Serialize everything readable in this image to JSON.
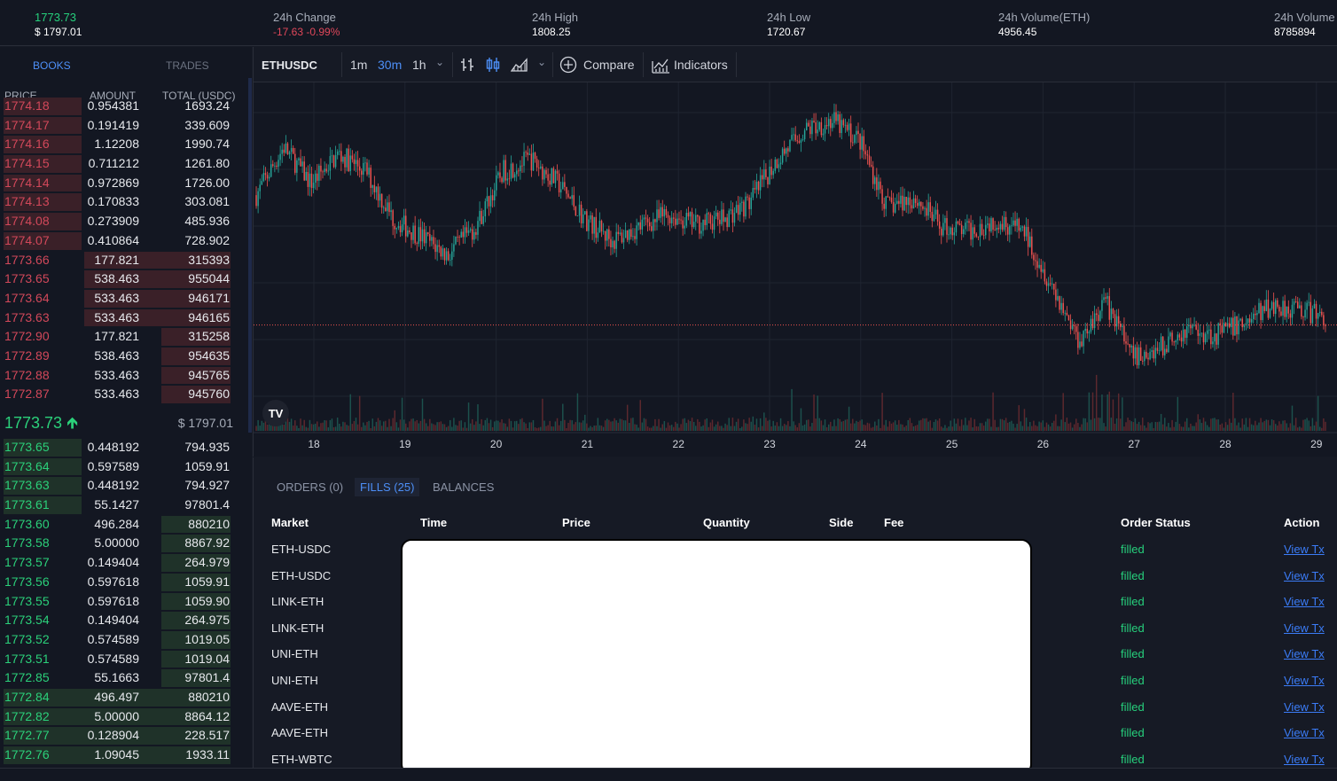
{
  "ticker": {
    "last_price": "1773.73",
    "last_usd": "$ 1797.01",
    "change_label": "24h Change",
    "change_value": "-17.63",
    "change_pct": "-0.99%",
    "high_label": "24h High",
    "high_value": "1808.25",
    "low_label": "24h Low",
    "low_value": "1720.67",
    "vol_eth_label": "24h Volume(ETH)",
    "vol_eth_value": "4956.45",
    "vol_label": "24h Volume",
    "vol_value": "8785894"
  },
  "book": {
    "tabs": [
      "BOOKS",
      "TRADES"
    ],
    "headers": [
      "PRICE",
      "AMOUNT",
      "TOTAL (USDC)"
    ],
    "asks": [
      {
        "price": "1774.18",
        "amount": "0.954381",
        "total": "1693.24",
        "depth": 0.05
      },
      {
        "price": "1774.17",
        "amount": "0.191419",
        "total": "339.609",
        "depth": 0.05
      },
      {
        "price": "1774.16",
        "amount": "1.12208",
        "total": "1990.74",
        "depth": 0.05
      },
      {
        "price": "1774.15",
        "amount": "0.711212",
        "total": "1261.80",
        "depth": 0.05
      },
      {
        "price": "1774.14",
        "amount": "0.972869",
        "total": "1726.00",
        "depth": 0.05
      },
      {
        "price": "1774.13",
        "amount": "0.170833",
        "total": "303.081",
        "depth": 0.05
      },
      {
        "price": "1774.08",
        "amount": "0.273909",
        "total": "485.936",
        "depth": 0.05
      },
      {
        "price": "1774.07",
        "amount": "0.410864",
        "total": "728.902",
        "depth": 0.05
      },
      {
        "price": "1773.66",
        "amount": "177.821",
        "total": "315393",
        "depth": 0.33
      },
      {
        "price": "1773.65",
        "amount": "538.463",
        "total": "955044",
        "depth": 0.33
      },
      {
        "price": "1773.64",
        "amount": "533.463",
        "total": "946171",
        "depth": 0.33
      },
      {
        "price": "1773.63",
        "amount": "533.463",
        "total": "946165",
        "depth": 0.33
      },
      {
        "price": "1772.90",
        "amount": "177.821",
        "total": "315258",
        "depth": 0.64
      },
      {
        "price": "1772.89",
        "amount": "538.463",
        "total": "954635",
        "depth": 0.64
      },
      {
        "price": "1772.88",
        "amount": "533.463",
        "total": "945765",
        "depth": 0.64
      },
      {
        "price": "1772.87",
        "amount": "533.463",
        "total": "945760",
        "depth": 0.64
      }
    ],
    "mid_price": "1773.73",
    "mid_usd": "$ 1797.01",
    "bids": [
      {
        "price": "1773.65",
        "amount": "0.448192",
        "total": "794.935",
        "depth": 0.05
      },
      {
        "price": "1773.64",
        "amount": "0.597589",
        "total": "1059.91",
        "depth": 0.05
      },
      {
        "price": "1773.63",
        "amount": "0.448192",
        "total": "794.927",
        "depth": 0.05
      },
      {
        "price": "1773.61",
        "amount": "55.1427",
        "total": "97801.4",
        "depth": 0.05
      },
      {
        "price": "1773.60",
        "amount": "496.284",
        "total": "880210",
        "depth": 0.37
      },
      {
        "price": "1773.58",
        "amount": "5.00000",
        "total": "8867.92",
        "depth": 0.37
      },
      {
        "price": "1773.57",
        "amount": "0.149404",
        "total": "264.979",
        "depth": 0.37
      },
      {
        "price": "1773.56",
        "amount": "0.597618",
        "total": "1059.91",
        "depth": 0.37
      },
      {
        "price": "1773.55",
        "amount": "0.597618",
        "total": "1059.90",
        "depth": 0.37
      },
      {
        "price": "1773.54",
        "amount": "0.149404",
        "total": "264.975",
        "depth": 0.37
      },
      {
        "price": "1773.52",
        "amount": "0.574589",
        "total": "1019.05",
        "depth": 0.37
      },
      {
        "price": "1773.51",
        "amount": "0.574589",
        "total": "1019.04",
        "depth": 0.37
      },
      {
        "price": "1772.85",
        "amount": "55.1663",
        "total": "97801.4",
        "depth": 0.37
      },
      {
        "price": "1772.84",
        "amount": "496.497",
        "total": "880210",
        "depth": 0.88
      },
      {
        "price": "1772.82",
        "amount": "5.00000",
        "total": "8864.12",
        "depth": 0.88
      },
      {
        "price": "1772.77",
        "amount": "0.128904",
        "total": "228.517",
        "depth": 0.88
      },
      {
        "price": "1772.76",
        "amount": "1.09045",
        "total": "1933.11",
        "depth": 0.88
      }
    ]
  },
  "toolbar": {
    "symbol": "ETHUSDC",
    "intervals": [
      "1m",
      "30m",
      "1h"
    ],
    "active_interval": "30m",
    "compare_label": "Compare",
    "indicators_label": "Indicators",
    "logo_text": "TV"
  },
  "chart_data": {
    "type": "candlestick",
    "x_tick_labels": [
      "18",
      "19",
      "20",
      "21",
      "22",
      "23",
      "24",
      "25",
      "26",
      "27",
      "28",
      "29"
    ],
    "close_series": [
      1785,
      1805,
      1790,
      1802,
      1795,
      1775,
      1768,
      1760,
      1772,
      1795,
      1800,
      1790,
      1775,
      1766,
      1772,
      1777,
      1773,
      1775,
      1782,
      1800,
      1812,
      1816,
      1808,
      1780,
      1784,
      1772,
      1770,
      1775,
      1770,
      1748,
      1725,
      1740,
      1718,
      1722,
      1730,
      1727,
      1732,
      1739,
      1738,
      1734
    ],
    "last_price_line": 1734
  },
  "bottom": {
    "tabs": [
      "ORDERS (0)",
      "FILLS (25)",
      "BALANCES"
    ],
    "active_tab": "FILLS (25)",
    "headers": [
      "Market",
      "Time",
      "Price",
      "Quantity",
      "Side",
      "Fee",
      "Order Status",
      "Action"
    ],
    "fills": [
      {
        "market": "ETH-USDC",
        "status": "filled",
        "action": "View Tx"
      },
      {
        "market": "ETH-USDC",
        "status": "filled",
        "action": "View Tx"
      },
      {
        "market": "LINK-ETH",
        "status": "filled",
        "action": "View Tx"
      },
      {
        "market": "LINK-ETH",
        "status": "filled",
        "action": "View Tx"
      },
      {
        "market": "UNI-ETH",
        "status": "filled",
        "action": "View Tx"
      },
      {
        "market": "UNI-ETH",
        "status": "filled",
        "action": "View Tx"
      },
      {
        "market": "AAVE-ETH",
        "status": "filled",
        "action": "View Tx"
      },
      {
        "market": "AAVE-ETH",
        "status": "filled",
        "action": "View Tx"
      },
      {
        "market": "ETH-WBTC",
        "status": "filled",
        "action": "View Tx"
      }
    ]
  }
}
